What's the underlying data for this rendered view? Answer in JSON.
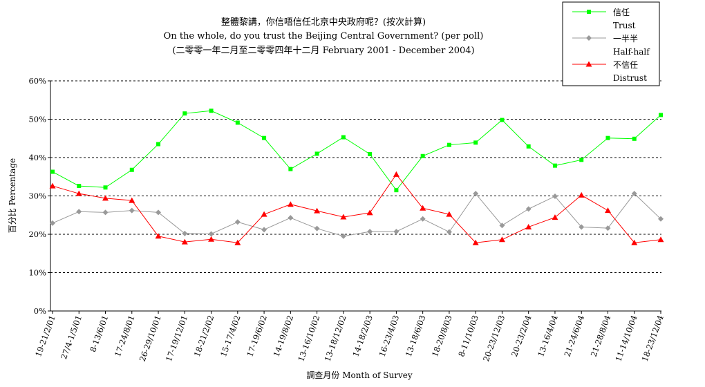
{
  "chart_data": {
    "type": "line",
    "title": "整體黎講，你信唔信任北京中央政府呢？(按次計算)",
    "subtitle": "On the whole, do you trust the Beijing Central Government?  (per poll)",
    "subtitle2": "(二零零一年二月至二零零四年十二月 February 2001 - December 2004)",
    "xlabel": "調查月份 Month of Survey",
    "ylabel": "百分比 Percentage",
    "ylim": [
      0,
      60
    ],
    "yticks": [
      "0%",
      "10%",
      "20%",
      "30%",
      "40%",
      "50%",
      "60%"
    ],
    "grid": true,
    "legend_position": "top-right",
    "categories": [
      "19-21/2/01",
      "27/4-1/5/01",
      "8-13/6/01",
      "17-24/8/01",
      "26-29/10/01",
      "17-19/12/01",
      "18-21/2/02",
      "15-17/4/02",
      "17-19/6/02",
      "14-19/8/02",
      "13-16/10/02",
      "13-18/12/02",
      "14-18/2/03",
      "16-23/4/03",
      "13-18/6/03",
      "18-20/8/03",
      "8-11/10/03",
      "20-23/12/03",
      "20-23/2/04",
      "13-16/4/04",
      "21-24/6/04",
      "21-28/8/04",
      "11-14/10/04",
      "18-23/12/04"
    ],
    "series": [
      {
        "name": "信任",
        "name_en": "Trust",
        "color": "#00ff00",
        "marker": "square",
        "values": [
          36.3,
          32.6,
          32.2,
          36.8,
          43.5,
          51.5,
          52.2,
          49.1,
          45.1,
          37.0,
          41.0,
          45.3,
          40.9,
          31.5,
          40.4,
          43.3,
          43.9,
          49.8,
          42.9,
          37.9,
          39.4,
          45.1,
          44.9,
          51.1
        ]
      },
      {
        "name": "一半半",
        "name_en": "Half-half",
        "color": "#999999",
        "marker": "diamond",
        "values": [
          22.9,
          25.9,
          25.7,
          26.2,
          25.7,
          20.2,
          20.1,
          23.2,
          21.2,
          24.3,
          21.5,
          19.5,
          20.7,
          20.7,
          24.0,
          20.6,
          30.6,
          22.3,
          26.6,
          29.9,
          21.9,
          21.6,
          30.6,
          24.0
        ]
      },
      {
        "name": "不信任",
        "name_en": "Distrust",
        "color": "#ff0000",
        "marker": "triangle",
        "values": [
          32.6,
          30.6,
          29.4,
          28.8,
          19.5,
          18.0,
          18.7,
          17.8,
          25.2,
          27.8,
          26.1,
          24.5,
          25.6,
          35.6,
          26.8,
          25.2,
          17.8,
          18.6,
          21.9,
          24.4,
          30.2,
          26.2,
          17.8,
          18.6
        ]
      }
    ]
  }
}
